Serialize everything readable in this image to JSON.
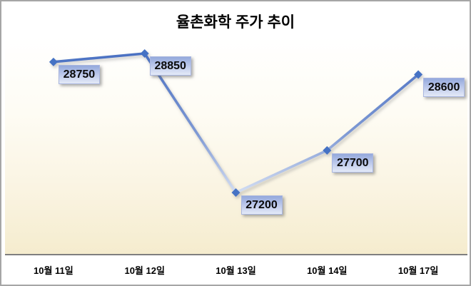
{
  "window": {
    "frame_border_color": "#a6a6a6",
    "background_color": "#ffffff"
  },
  "chart_data": {
    "type": "line",
    "title": "율촌화학 주가 추이",
    "categories": [
      "10월 11일",
      "10월 12일",
      "10월 13일",
      "10월 14일",
      "10월 17일"
    ],
    "values": [
      28750,
      28850,
      27200,
      27700,
      28600
    ],
    "data_labels": [
      "28750",
      "28850",
      "27200",
      "27700",
      "28600"
    ],
    "xlabel": "",
    "ylabel": "",
    "legend": "none",
    "gridlines": "none",
    "y_axis_visible": false,
    "marker_shape": "diamond",
    "colors": {
      "title_text": "#000000",
      "line_gradient_top": "#4a70c2",
      "line_gradient_bottom": "#dfe7f6",
      "marker_fill": "#4472c4",
      "label_box_top": "#94a9dc",
      "label_box_bottom": "#e4eaf7",
      "label_text": "#0a0a0a",
      "plot_bg_top": "#ffffff",
      "plot_bg_bottom": "#f5ecce",
      "axis_line": "#7f7f7f",
      "axis_label_text": "#000000"
    }
  }
}
